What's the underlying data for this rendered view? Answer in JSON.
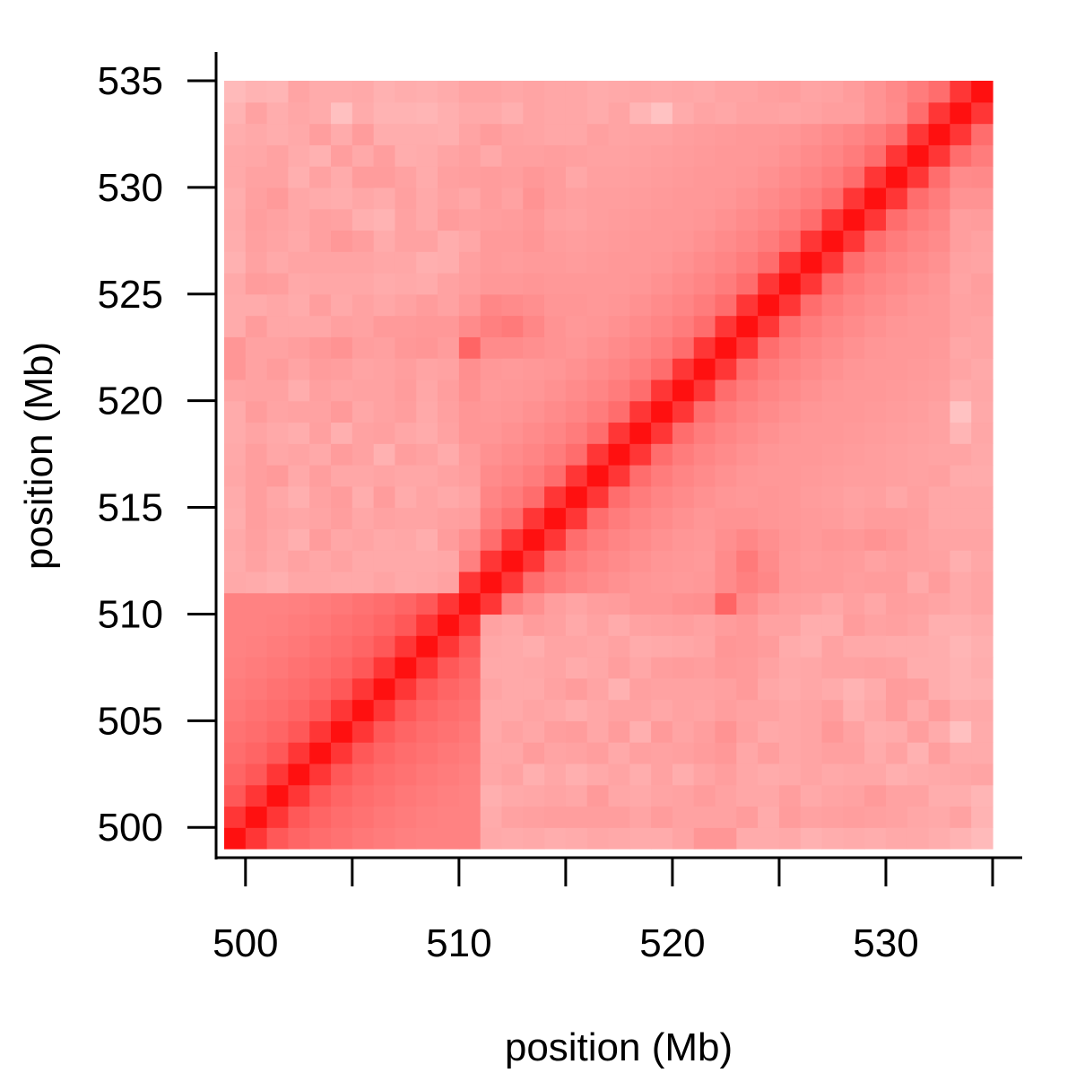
{
  "chart_data": {
    "type": "heatmap",
    "title": "",
    "xlabel": "position (Mb)",
    "ylabel": "position (Mb)",
    "xlim": [
      499,
      535
    ],
    "ylim": [
      499,
      535
    ],
    "bin_size_mb": 1,
    "x_ticks": [
      500,
      505,
      510,
      515,
      520,
      525,
      530,
      535
    ],
    "x_tick_labels": [
      "500",
      "510",
      "520",
      "530"
    ],
    "x_tick_label_values": [
      500,
      510,
      520,
      530
    ],
    "y_ticks": [
      500,
      505,
      510,
      515,
      520,
      525,
      530,
      535
    ],
    "y_tick_labels": [
      "500",
      "505",
      "510",
      "515",
      "520",
      "525",
      "530",
      "535"
    ],
    "color_low": "#ffe4e4",
    "color_high": "#ff1010",
    "value_scale": "relative contact intensity 0-1",
    "grid": false,
    "legend": "none",
    "matrix": [
      [
        1.0,
        0.82,
        0.66,
        0.6,
        0.56,
        0.54,
        0.51,
        0.49,
        0.47,
        0.46,
        0.46,
        0.46,
        0.28,
        0.27,
        0.28,
        0.26,
        0.27,
        0.29,
        0.28,
        0.27,
        0.27,
        0.3,
        0.37,
        0.37,
        0.27,
        0.27,
        0.28,
        0.24,
        0.26,
        0.27,
        0.26,
        0.28,
        0.28,
        0.26,
        0.23,
        0.2
      ],
      [
        0.82,
        1.0,
        0.82,
        0.66,
        0.6,
        0.56,
        0.54,
        0.51,
        0.49,
        0.47,
        0.46,
        0.46,
        0.27,
        0.31,
        0.32,
        0.33,
        0.33,
        0.33,
        0.33,
        0.3,
        0.34,
        0.31,
        0.31,
        0.31,
        0.34,
        0.27,
        0.34,
        0.31,
        0.32,
        0.33,
        0.32,
        0.31,
        0.29,
        0.28,
        0.31,
        0.23
      ],
      [
        0.66,
        0.82,
        1.0,
        0.82,
        0.66,
        0.6,
        0.56,
        0.54,
        0.51,
        0.49,
        0.47,
        0.46,
        0.25,
        0.28,
        0.29,
        0.3,
        0.29,
        0.35,
        0.29,
        0.28,
        0.3,
        0.31,
        0.34,
        0.31,
        0.29,
        0.29,
        0.33,
        0.28,
        0.3,
        0.31,
        0.35,
        0.31,
        0.31,
        0.26,
        0.26,
        0.22
      ],
      [
        0.6,
        0.66,
        0.82,
        1.0,
        0.82,
        0.66,
        0.6,
        0.56,
        0.54,
        0.51,
        0.49,
        0.47,
        0.29,
        0.31,
        0.25,
        0.29,
        0.25,
        0.28,
        0.3,
        0.26,
        0.31,
        0.26,
        0.3,
        0.33,
        0.29,
        0.27,
        0.28,
        0.3,
        0.28,
        0.29,
        0.29,
        0.25,
        0.27,
        0.28,
        0.29,
        0.3
      ],
      [
        0.56,
        0.6,
        0.66,
        0.82,
        1.0,
        0.82,
        0.66,
        0.6,
        0.56,
        0.54,
        0.51,
        0.49,
        0.29,
        0.29,
        0.34,
        0.3,
        0.31,
        0.33,
        0.28,
        0.32,
        0.31,
        0.32,
        0.34,
        0.36,
        0.29,
        0.33,
        0.29,
        0.3,
        0.32,
        0.32,
        0.27,
        0.31,
        0.24,
        0.33,
        0.27,
        0.27
      ],
      [
        0.54,
        0.56,
        0.6,
        0.66,
        0.82,
        1.0,
        0.82,
        0.66,
        0.6,
        0.56,
        0.54,
        0.51,
        0.28,
        0.31,
        0.29,
        0.33,
        0.34,
        0.29,
        0.34,
        0.25,
        0.35,
        0.3,
        0.33,
        0.38,
        0.32,
        0.28,
        0.29,
        0.3,
        0.36,
        0.31,
        0.26,
        0.27,
        0.33,
        0.27,
        0.17,
        0.27
      ],
      [
        0.51,
        0.54,
        0.56,
        0.6,
        0.66,
        0.82,
        1.0,
        0.82,
        0.66,
        0.6,
        0.56,
        0.54,
        0.28,
        0.28,
        0.3,
        0.29,
        0.26,
        0.29,
        0.31,
        0.31,
        0.29,
        0.31,
        0.3,
        0.33,
        0.31,
        0.31,
        0.29,
        0.3,
        0.33,
        0.25,
        0.29,
        0.34,
        0.28,
        0.34,
        0.27,
        0.28
      ],
      [
        0.49,
        0.51,
        0.54,
        0.56,
        0.6,
        0.66,
        0.82,
        1.0,
        0.82,
        0.66,
        0.6,
        0.56,
        0.3,
        0.28,
        0.28,
        0.31,
        0.34,
        0.3,
        0.24,
        0.32,
        0.31,
        0.31,
        0.31,
        0.32,
        0.35,
        0.29,
        0.27,
        0.29,
        0.27,
        0.23,
        0.27,
        0.34,
        0.33,
        0.26,
        0.23,
        0.24
      ],
      [
        0.47,
        0.49,
        0.51,
        0.54,
        0.56,
        0.6,
        0.66,
        0.82,
        1.0,
        0.82,
        0.66,
        0.6,
        0.28,
        0.28,
        0.29,
        0.3,
        0.27,
        0.29,
        0.33,
        0.29,
        0.33,
        0.34,
        0.33,
        0.36,
        0.35,
        0.31,
        0.28,
        0.29,
        0.31,
        0.31,
        0.32,
        0.31,
        0.26,
        0.26,
        0.23,
        0.26
      ],
      [
        0.46,
        0.47,
        0.49,
        0.51,
        0.54,
        0.56,
        0.6,
        0.66,
        0.82,
        1.0,
        0.82,
        0.66,
        0.29,
        0.28,
        0.26,
        0.3,
        0.3,
        0.29,
        0.31,
        0.27,
        0.28,
        0.29,
        0.3,
        0.37,
        0.36,
        0.34,
        0.27,
        0.25,
        0.31,
        0.28,
        0.28,
        0.27,
        0.27,
        0.26,
        0.22,
        0.25
      ],
      [
        0.46,
        0.46,
        0.47,
        0.49,
        0.51,
        0.54,
        0.56,
        0.6,
        0.66,
        0.82,
        1.0,
        0.82,
        0.31,
        0.29,
        0.34,
        0.32,
        0.28,
        0.31,
        0.27,
        0.31,
        0.32,
        0.33,
        0.31,
        0.34,
        0.36,
        0.31,
        0.31,
        0.26,
        0.26,
        0.34,
        0.31,
        0.32,
        0.3,
        0.25,
        0.25,
        0.27
      ],
      [
        0.46,
        0.46,
        0.46,
        0.47,
        0.49,
        0.51,
        0.54,
        0.56,
        0.6,
        0.66,
        0.82,
        1.0,
        0.82,
        0.47,
        0.4,
        0.33,
        0.3,
        0.33,
        0.34,
        0.37,
        0.37,
        0.39,
        0.4,
        0.6,
        0.42,
        0.36,
        0.33,
        0.32,
        0.29,
        0.32,
        0.29,
        0.33,
        0.32,
        0.3,
        0.28,
        0.3
      ],
      [
        0.28,
        0.27,
        0.25,
        0.29,
        0.29,
        0.28,
        0.28,
        0.3,
        0.28,
        0.29,
        0.31,
        0.82,
        1.0,
        0.82,
        0.56,
        0.49,
        0.45,
        0.42,
        0.39,
        0.37,
        0.36,
        0.35,
        0.36,
        0.42,
        0.47,
        0.44,
        0.36,
        0.35,
        0.35,
        0.33,
        0.34,
        0.34,
        0.28,
        0.34,
        0.28,
        0.3
      ],
      [
        0.27,
        0.31,
        0.28,
        0.31,
        0.29,
        0.31,
        0.28,
        0.28,
        0.28,
        0.28,
        0.29,
        0.47,
        0.82,
        1.0,
        0.82,
        0.56,
        0.49,
        0.45,
        0.42,
        0.39,
        0.37,
        0.36,
        0.35,
        0.42,
        0.5,
        0.42,
        0.36,
        0.34,
        0.35,
        0.34,
        0.31,
        0.33,
        0.32,
        0.31,
        0.25,
        0.29
      ],
      [
        0.28,
        0.32,
        0.29,
        0.25,
        0.34,
        0.29,
        0.3,
        0.28,
        0.29,
        0.26,
        0.34,
        0.4,
        0.56,
        0.82,
        1.0,
        0.82,
        0.56,
        0.49,
        0.45,
        0.42,
        0.39,
        0.37,
        0.36,
        0.4,
        0.44,
        0.4,
        0.37,
        0.35,
        0.37,
        0.36,
        0.38,
        0.36,
        0.32,
        0.3,
        0.3,
        0.3
      ],
      [
        0.26,
        0.33,
        0.3,
        0.29,
        0.3,
        0.33,
        0.29,
        0.31,
        0.3,
        0.3,
        0.32,
        0.33,
        0.49,
        0.56,
        0.82,
        1.0,
        0.82,
        0.56,
        0.49,
        0.45,
        0.42,
        0.39,
        0.37,
        0.38,
        0.38,
        0.37,
        0.36,
        0.35,
        0.34,
        0.32,
        0.34,
        0.34,
        0.33,
        0.29,
        0.29,
        0.29
      ],
      [
        0.27,
        0.33,
        0.29,
        0.25,
        0.31,
        0.34,
        0.26,
        0.34,
        0.27,
        0.3,
        0.28,
        0.3,
        0.45,
        0.49,
        0.56,
        0.82,
        1.0,
        0.82,
        0.56,
        0.49,
        0.45,
        0.42,
        0.39,
        0.37,
        0.36,
        0.37,
        0.36,
        0.34,
        0.33,
        0.31,
        0.32,
        0.29,
        0.32,
        0.29,
        0.29,
        0.29
      ],
      [
        0.29,
        0.33,
        0.35,
        0.28,
        0.33,
        0.29,
        0.29,
        0.3,
        0.29,
        0.29,
        0.31,
        0.33,
        0.42,
        0.45,
        0.49,
        0.56,
        0.82,
        1.0,
        0.82,
        0.56,
        0.49,
        0.45,
        0.42,
        0.39,
        0.37,
        0.36,
        0.36,
        0.35,
        0.34,
        0.33,
        0.33,
        0.32,
        0.31,
        0.32,
        0.27,
        0.27
      ],
      [
        0.28,
        0.33,
        0.29,
        0.3,
        0.28,
        0.34,
        0.31,
        0.24,
        0.33,
        0.31,
        0.27,
        0.34,
        0.39,
        0.42,
        0.45,
        0.49,
        0.56,
        0.82,
        1.0,
        0.82,
        0.56,
        0.49,
        0.45,
        0.42,
        0.39,
        0.37,
        0.36,
        0.36,
        0.35,
        0.34,
        0.33,
        0.32,
        0.31,
        0.3,
        0.3,
        0.28
      ],
      [
        0.27,
        0.3,
        0.28,
        0.26,
        0.32,
        0.25,
        0.31,
        0.32,
        0.29,
        0.27,
        0.31,
        0.37,
        0.37,
        0.39,
        0.42,
        0.45,
        0.49,
        0.56,
        0.82,
        1.0,
        0.82,
        0.56,
        0.49,
        0.45,
        0.42,
        0.39,
        0.37,
        0.36,
        0.36,
        0.35,
        0.34,
        0.33,
        0.32,
        0.31,
        0.22,
        0.29
      ],
      [
        0.27,
        0.34,
        0.3,
        0.31,
        0.31,
        0.35,
        0.29,
        0.31,
        0.33,
        0.28,
        0.32,
        0.37,
        0.36,
        0.37,
        0.39,
        0.42,
        0.45,
        0.49,
        0.56,
        0.82,
        1.0,
        0.82,
        0.56,
        0.49,
        0.45,
        0.42,
        0.39,
        0.37,
        0.36,
        0.36,
        0.35,
        0.34,
        0.33,
        0.31,
        0.16,
        0.28
      ],
      [
        0.3,
        0.31,
        0.31,
        0.26,
        0.32,
        0.3,
        0.31,
        0.31,
        0.34,
        0.29,
        0.33,
        0.39,
        0.35,
        0.36,
        0.37,
        0.39,
        0.42,
        0.45,
        0.49,
        0.56,
        0.82,
        1.0,
        0.82,
        0.56,
        0.49,
        0.45,
        0.42,
        0.39,
        0.37,
        0.36,
        0.36,
        0.35,
        0.34,
        0.33,
        0.27,
        0.29
      ],
      [
        0.37,
        0.31,
        0.34,
        0.3,
        0.34,
        0.33,
        0.3,
        0.31,
        0.33,
        0.3,
        0.31,
        0.4,
        0.36,
        0.35,
        0.36,
        0.37,
        0.39,
        0.42,
        0.45,
        0.49,
        0.56,
        0.82,
        1.0,
        0.82,
        0.56,
        0.49,
        0.45,
        0.42,
        0.39,
        0.37,
        0.36,
        0.36,
        0.35,
        0.34,
        0.3,
        0.28
      ],
      [
        0.37,
        0.31,
        0.31,
        0.33,
        0.36,
        0.38,
        0.33,
        0.32,
        0.36,
        0.37,
        0.34,
        0.6,
        0.42,
        0.42,
        0.4,
        0.38,
        0.37,
        0.39,
        0.42,
        0.45,
        0.49,
        0.56,
        0.82,
        1.0,
        0.82,
        0.56,
        0.49,
        0.45,
        0.42,
        0.39,
        0.37,
        0.36,
        0.36,
        0.35,
        0.29,
        0.3
      ],
      [
        0.27,
        0.34,
        0.29,
        0.29,
        0.29,
        0.32,
        0.31,
        0.35,
        0.35,
        0.36,
        0.36,
        0.42,
        0.47,
        0.5,
        0.44,
        0.38,
        0.36,
        0.37,
        0.39,
        0.42,
        0.45,
        0.49,
        0.56,
        0.82,
        1.0,
        0.82,
        0.56,
        0.49,
        0.45,
        0.42,
        0.39,
        0.37,
        0.36,
        0.36,
        0.31,
        0.3
      ],
      [
        0.27,
        0.27,
        0.29,
        0.27,
        0.33,
        0.28,
        0.31,
        0.29,
        0.31,
        0.34,
        0.31,
        0.36,
        0.44,
        0.42,
        0.4,
        0.37,
        0.37,
        0.36,
        0.37,
        0.39,
        0.42,
        0.45,
        0.49,
        0.56,
        0.82,
        1.0,
        0.82,
        0.56,
        0.49,
        0.45,
        0.42,
        0.39,
        0.37,
        0.36,
        0.31,
        0.32
      ],
      [
        0.28,
        0.34,
        0.33,
        0.28,
        0.29,
        0.29,
        0.29,
        0.27,
        0.28,
        0.27,
        0.31,
        0.33,
        0.36,
        0.36,
        0.37,
        0.36,
        0.36,
        0.36,
        0.36,
        0.37,
        0.39,
        0.42,
        0.45,
        0.49,
        0.56,
        0.82,
        1.0,
        0.82,
        0.56,
        0.49,
        0.45,
        0.42,
        0.39,
        0.37,
        0.3,
        0.33
      ],
      [
        0.24,
        0.31,
        0.28,
        0.3,
        0.3,
        0.3,
        0.3,
        0.29,
        0.29,
        0.25,
        0.26,
        0.32,
        0.35,
        0.34,
        0.35,
        0.35,
        0.34,
        0.35,
        0.36,
        0.36,
        0.37,
        0.39,
        0.42,
        0.45,
        0.49,
        0.56,
        0.82,
        1.0,
        0.82,
        0.56,
        0.49,
        0.45,
        0.42,
        0.39,
        0.31,
        0.3
      ],
      [
        0.26,
        0.32,
        0.3,
        0.28,
        0.32,
        0.36,
        0.33,
        0.27,
        0.31,
        0.31,
        0.26,
        0.29,
        0.35,
        0.35,
        0.37,
        0.34,
        0.33,
        0.34,
        0.35,
        0.36,
        0.36,
        0.37,
        0.39,
        0.42,
        0.45,
        0.49,
        0.56,
        0.82,
        1.0,
        0.82,
        0.56,
        0.49,
        0.45,
        0.42,
        0.33,
        0.31
      ],
      [
        0.27,
        0.33,
        0.31,
        0.29,
        0.32,
        0.31,
        0.25,
        0.23,
        0.31,
        0.28,
        0.34,
        0.32,
        0.33,
        0.34,
        0.36,
        0.32,
        0.31,
        0.33,
        0.34,
        0.35,
        0.36,
        0.36,
        0.37,
        0.39,
        0.42,
        0.45,
        0.49,
        0.56,
        0.82,
        1.0,
        0.82,
        0.56,
        0.49,
        0.45,
        0.33,
        0.34
      ],
      [
        0.26,
        0.32,
        0.35,
        0.29,
        0.27,
        0.26,
        0.29,
        0.27,
        0.32,
        0.28,
        0.31,
        0.29,
        0.34,
        0.31,
        0.38,
        0.34,
        0.32,
        0.33,
        0.33,
        0.34,
        0.35,
        0.36,
        0.36,
        0.37,
        0.39,
        0.42,
        0.45,
        0.49,
        0.56,
        0.82,
        1.0,
        0.82,
        0.56,
        0.49,
        0.38,
        0.38
      ],
      [
        0.28,
        0.31,
        0.31,
        0.25,
        0.31,
        0.27,
        0.34,
        0.34,
        0.31,
        0.27,
        0.32,
        0.33,
        0.34,
        0.33,
        0.36,
        0.34,
        0.29,
        0.32,
        0.32,
        0.33,
        0.34,
        0.35,
        0.36,
        0.36,
        0.37,
        0.39,
        0.42,
        0.45,
        0.49,
        0.56,
        0.82,
        1.0,
        0.82,
        0.56,
        0.42,
        0.43
      ],
      [
        0.28,
        0.29,
        0.31,
        0.27,
        0.24,
        0.33,
        0.28,
        0.33,
        0.26,
        0.27,
        0.3,
        0.32,
        0.28,
        0.32,
        0.32,
        0.33,
        0.32,
        0.31,
        0.31,
        0.32,
        0.33,
        0.34,
        0.35,
        0.36,
        0.36,
        0.37,
        0.39,
        0.42,
        0.45,
        0.49,
        0.56,
        0.82,
        1.0,
        0.82,
        0.56,
        0.49
      ],
      [
        0.26,
        0.28,
        0.26,
        0.28,
        0.33,
        0.27,
        0.34,
        0.26,
        0.26,
        0.26,
        0.25,
        0.3,
        0.34,
        0.31,
        0.3,
        0.29,
        0.29,
        0.32,
        0.3,
        0.31,
        0.31,
        0.33,
        0.34,
        0.35,
        0.36,
        0.36,
        0.37,
        0.39,
        0.42,
        0.45,
        0.49,
        0.56,
        0.82,
        1.0,
        0.82,
        0.56
      ],
      [
        0.23,
        0.31,
        0.26,
        0.29,
        0.27,
        0.17,
        0.27,
        0.23,
        0.23,
        0.22,
        0.25,
        0.28,
        0.28,
        0.25,
        0.3,
        0.29,
        0.29,
        0.27,
        0.3,
        0.22,
        0.16,
        0.27,
        0.3,
        0.29,
        0.31,
        0.31,
        0.3,
        0.31,
        0.33,
        0.33,
        0.38,
        0.42,
        0.56,
        0.82,
        1.0,
        0.82
      ],
      [
        0.2,
        0.23,
        0.22,
        0.3,
        0.27,
        0.27,
        0.28,
        0.24,
        0.26,
        0.25,
        0.27,
        0.3,
        0.3,
        0.29,
        0.3,
        0.29,
        0.29,
        0.27,
        0.28,
        0.29,
        0.28,
        0.29,
        0.28,
        0.3,
        0.3,
        0.32,
        0.33,
        0.3,
        0.31,
        0.34,
        0.38,
        0.43,
        0.49,
        0.56,
        0.82,
        1.0
      ]
    ]
  }
}
